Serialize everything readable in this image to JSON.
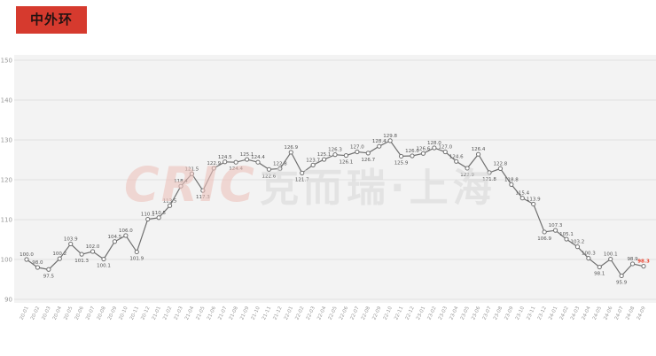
{
  "page": {
    "title_badge": "中外环"
  },
  "watermark": {
    "logo": "CRIC",
    "text": "克而瑞·上海"
  },
  "chart_data": {
    "type": "line",
    "title": "中外环",
    "x": [
      "20-01",
      "20-02",
      "20-03",
      "20-04",
      "20-05",
      "20-06",
      "20-07",
      "20-08",
      "20-09",
      "20-10",
      "20-11",
      "20-12",
      "21-01",
      "21-02",
      "21-03",
      "21-04",
      "21-05",
      "21-06",
      "21-07",
      "21-08",
      "21-09",
      "21-10",
      "21-11",
      "21-12",
      "22-01",
      "22-02",
      "22-03",
      "22-04",
      "22-05",
      "22-06",
      "22-07",
      "22-08",
      "22-09",
      "22-10",
      "22-11",
      "22-12",
      "23-01",
      "23-02",
      "23-03",
      "23-04",
      "23-05",
      "23-06",
      "23-07",
      "23-08",
      "23-09",
      "23-10",
      "23-11",
      "23-12",
      "24-01",
      "24-02",
      "24-03",
      "24-04",
      "24-05",
      "24-06",
      "24-07",
      "24-08",
      "24-09"
    ],
    "values": [
      100.0,
      98.0,
      97.5,
      100.2,
      103.9,
      101.3,
      102.0,
      100.1,
      104.5,
      106.0,
      101.9,
      110.1,
      110.5,
      113.5,
      118.4,
      121.5,
      117.3,
      122.9,
      124.5,
      124.4,
      125.1,
      124.4,
      122.6,
      122.8,
      126.9,
      121.7,
      123.7,
      125.1,
      126.3,
      126.1,
      127.0,
      126.7,
      128.4,
      129.8,
      125.9,
      126.0,
      126.6,
      128.0,
      127.0,
      124.6,
      122.9,
      126.4,
      121.8,
      122.8,
      118.8,
      115.4,
      113.9,
      106.9,
      107.3,
      105.1,
      103.2,
      100.3,
      98.1,
      100.1,
      95.9,
      98.9,
      98.3
    ],
    "ylim": [
      90,
      150
    ],
    "yticks": [
      90,
      100,
      110,
      120,
      130,
      140,
      150
    ],
    "grid": true,
    "legend": "none",
    "line_color": "#707070",
    "marker_fill": "#ffffff",
    "label_color": "#555555",
    "last_label_color": "#e8402c",
    "plot_bg": "#f3f3f3",
    "grid_color": "#e2e2e2",
    "axis_text_color": "#999999"
  }
}
